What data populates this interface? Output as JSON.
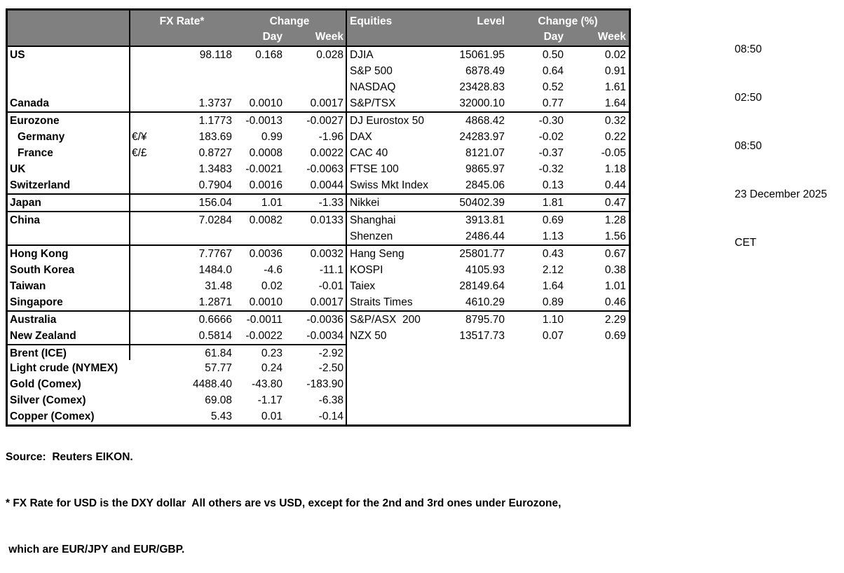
{
  "header": {
    "fx_rate": "FX Rate*",
    "change": "Change",
    "equities": "Equities",
    "level": "Level",
    "change_pct": "Change (%)",
    "day": "Day",
    "week": "Week"
  },
  "meta": {
    "times": [
      "08:50",
      "02:50",
      "08:50"
    ],
    "date": "23 December 2025",
    "timezone": "CET"
  },
  "footer": {
    "source": "Source:  Reuters EIKON.",
    "note1": "* FX Rate for USD is the DXY dollar  All others are vs USD, except for the 2nd and 3rd ones under Eurozone,",
    "note2": " which are EUR/JPY and EUR/GBP."
  },
  "colors": {
    "header_bg": "#808080",
    "header_text": "#ffffff",
    "border": "#000000"
  },
  "rows": [
    {
      "c": "US",
      "s": "",
      "fx": "98.118",
      "d": "0.168",
      "w": "0.028",
      "e": "DJIA",
      "l": "15061.95",
      "ed": "0.50",
      "ew": "0.02"
    },
    {
      "c": "",
      "s": "",
      "fx": "",
      "d": "",
      "w": "",
      "e": "S&P 500",
      "l": "6878.49",
      "ed": "0.64",
      "ew": "0.91"
    },
    {
      "c": "",
      "s": "",
      "fx": "",
      "d": "",
      "w": "",
      "e": "NASDAQ",
      "l": "23428.83",
      "ed": "0.52",
      "ew": "1.61"
    },
    {
      "c": "Canada",
      "s": "",
      "fx": "1.3737",
      "d": "0.0010",
      "w": "0.0017",
      "e": "S&P/TSX",
      "l": "32000.10",
      "ed": "0.77",
      "ew": "1.64"
    },
    {
      "c": "Eurozone",
      "s": "",
      "fx": "1.1773",
      "d": "-0.0013",
      "w": "-0.0027",
      "e": "DJ Eurostox 50",
      "l": "4868.42",
      "ed": "-0.30",
      "ew": "0.32",
      "sep": "both"
    },
    {
      "c": "Germany",
      "s": "€/¥",
      "fx": "183.69",
      "d": "0.99",
      "w": "-1.96",
      "e": "DAX",
      "l": "24283.97",
      "ed": "-0.02",
      "ew": "0.22",
      "ind": true
    },
    {
      "c": "France",
      "s": "€/£",
      "fx": "0.8727",
      "d": "0.0008",
      "w": "0.0022",
      "e": "CAC 40",
      "l": "8121.07",
      "ed": "-0.37",
      "ew": "-0.05",
      "ind": true
    },
    {
      "c": "UK",
      "s": "",
      "fx": "1.3483",
      "d": "-0.0021",
      "w": "-0.0063",
      "e": "FTSE 100",
      "l": "9865.97",
      "ed": "-0.32",
      "ew": "1.18"
    },
    {
      "c": "Switzerland",
      "s": "",
      "fx": "0.7904",
      "d": "0.0016",
      "w": "0.0044",
      "e": "Swiss Mkt Index",
      "l": "2845.06",
      "ed": "0.13",
      "ew": "0.44"
    },
    {
      "c": "Japan",
      "s": "",
      "fx": "156.04",
      "d": "1.01",
      "w": "-1.33",
      "e": "Nikkei",
      "l": "50402.39",
      "ed": "1.81",
      "ew": "0.47",
      "sep": "both"
    },
    {
      "c": "China",
      "s": "",
      "fx": "7.0284",
      "d": "0.0082",
      "w": "0.0133",
      "e": "Shanghai",
      "l": "3913.81",
      "ed": "0.69",
      "ew": "1.28",
      "sep": "both"
    },
    {
      "c": "",
      "s": "",
      "fx": "",
      "d": "",
      "w": "",
      "e": "Shenzen",
      "l": "2486.44",
      "ed": "1.13",
      "ew": "1.56"
    },
    {
      "c": "Hong Kong",
      "s": "",
      "fx": "7.7767",
      "d": "0.0036",
      "w": "0.0032",
      "e": "Hang Seng",
      "l": "25801.77",
      "ed": "0.43",
      "ew": "0.67",
      "sep": "both"
    },
    {
      "c": "South Korea",
      "s": "",
      "fx": "1484.0",
      "d": "-4.6",
      "w": "-11.1",
      "e": "KOSPI",
      "l": "4105.93",
      "ed": "2.12",
      "ew": "0.38"
    },
    {
      "c": "Taiwan",
      "s": "",
      "fx": "31.48",
      "d": "0.02",
      "w": "-0.01",
      "e": "Taiex",
      "l": "28149.64",
      "ed": "1.64",
      "ew": "1.01"
    },
    {
      "c": "Singapore",
      "s": "",
      "fx": "1.2871",
      "d": "0.0010",
      "w": "0.0017",
      "e": "Straits Times",
      "l": "4610.29",
      "ed": "0.89",
      "ew": "0.46"
    },
    {
      "c": "Australia",
      "s": "",
      "fx": "0.6666",
      "d": "-0.0011",
      "w": "-0.0036",
      "e": "S&P/ASX  200",
      "l": "8795.70",
      "ed": "1.10",
      "ew": "2.29",
      "sep": "both"
    },
    {
      "c": "New Zealand",
      "s": "",
      "fx": "0.5814",
      "d": "-0.0022",
      "w": "-0.0034",
      "e": "NZX 50",
      "l": "13517.73",
      "ed": "0.07",
      "ew": "0.69"
    },
    {
      "c": "Brent (ICE)",
      "s": "",
      "fx": "61.84",
      "d": "0.23",
      "w": "-2.92",
      "e": "",
      "l": "",
      "ed": "",
      "ew": "",
      "sep": "left"
    },
    {
      "c": "Light crude (NYMEX)",
      "s": "",
      "fx": "57.77",
      "d": "0.24",
      "w": "-2.50",
      "e": "",
      "l": "",
      "ed": "",
      "ew": "",
      "nodiv": true
    },
    {
      "c": "Gold (Comex)",
      "s": "",
      "fx": "4488.40",
      "d": "-43.80",
      "w": "-183.90",
      "e": "",
      "l": "",
      "ed": "",
      "ew": "",
      "nodiv": true
    },
    {
      "c": "Silver (Comex)",
      "s": "",
      "fx": "69.08",
      "d": "-1.17",
      "w": "-6.38",
      "e": "",
      "l": "",
      "ed": "",
      "ew": "",
      "nodiv": true
    },
    {
      "c": "Copper (Comex)",
      "s": "",
      "fx": "5.43",
      "d": "0.01",
      "w": "-0.14",
      "e": "",
      "l": "",
      "ed": "",
      "ew": "",
      "nodiv": true
    }
  ]
}
